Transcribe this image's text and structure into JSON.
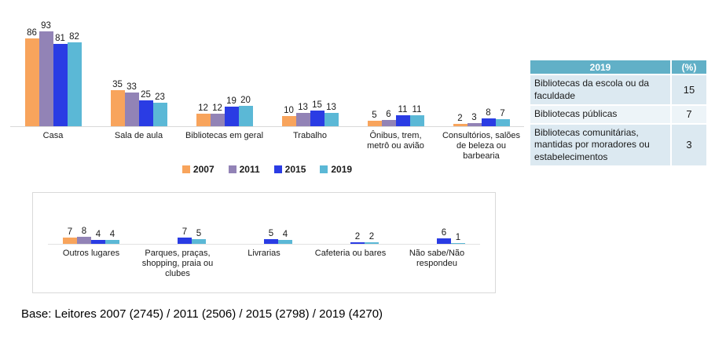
{
  "chart_data": [
    {
      "id": "main",
      "type": "bar",
      "title": "",
      "xlabel": "",
      "ylabel": "",
      "ylim": [
        0,
        100
      ],
      "grid": false,
      "data_labels": true,
      "legend_position": "bottom",
      "categories": [
        "Casa",
        "Sala de aula",
        "Bibliotecas em geral",
        "Trabalho",
        "Ônibus, trem,\nmetrô ou avião",
        "Consultórios, salões\nde beleza ou\nbarbearia"
      ],
      "series": [
        {
          "name": "2007",
          "color": "#F8A45C",
          "values": [
            86,
            35,
            12,
            10,
            5,
            2
          ]
        },
        {
          "name": "2011",
          "color": "#9283B6",
          "values": [
            93,
            33,
            12,
            13,
            6,
            3
          ]
        },
        {
          "name": "2015",
          "color": "#2A3CE4",
          "values": [
            81,
            25,
            19,
            15,
            11,
            8
          ]
        },
        {
          "name": "2019",
          "color": "#5BB8D6",
          "values": [
            82,
            23,
            20,
            13,
            11,
            7
          ]
        }
      ]
    },
    {
      "id": "secondary",
      "type": "bar",
      "title": "",
      "xlabel": "",
      "ylabel": "",
      "ylim": [
        0,
        10
      ],
      "grid": false,
      "data_labels": true,
      "legend_position": "none",
      "categories": [
        "Outros lugares",
        "Parques, praças,\nshopping, praia ou\nclubes",
        "Livrarias",
        "Cafeteria ou bares",
        "Não sabe/Não\nrespondeu"
      ],
      "series": [
        {
          "name": "2007",
          "color": "#F8A45C",
          "values": [
            7,
            null,
            null,
            null,
            null
          ]
        },
        {
          "name": "2011",
          "color": "#9283B6",
          "values": [
            8,
            null,
            null,
            null,
            null
          ]
        },
        {
          "name": "2015",
          "color": "#2A3CE4",
          "values": [
            4,
            7,
            5,
            2,
            6
          ]
        },
        {
          "name": "2019",
          "color": "#5BB8D6",
          "values": [
            4,
            5,
            4,
            2,
            1
          ]
        }
      ]
    }
  ],
  "side_table": {
    "header": [
      "2019",
      "(%)"
    ],
    "rows": [
      {
        "label": "Bibliotecas da escola ou da faculdade",
        "value": "15"
      },
      {
        "label": "Bibliotecas públicas",
        "value": "7"
      },
      {
        "label": "Bibliotecas comunitárias, mantidas por moradores ou estabelecimentos",
        "value": "3"
      }
    ],
    "colors": {
      "header_bg": "#61B0C7",
      "header_text": "#FFFFFF",
      "row_bg_a": "#DCE9F1",
      "row_bg_b": "#EDF4F8"
    }
  },
  "base_note": "Base: Leitores 2007 (2745) / 2011 (2506) / 2015 (2798) / 2019 (4270)",
  "colors": {
    "axis_line": "#D9D9D9",
    "box_border": "#D9D9D9",
    "text": "#1A1A1A"
  }
}
